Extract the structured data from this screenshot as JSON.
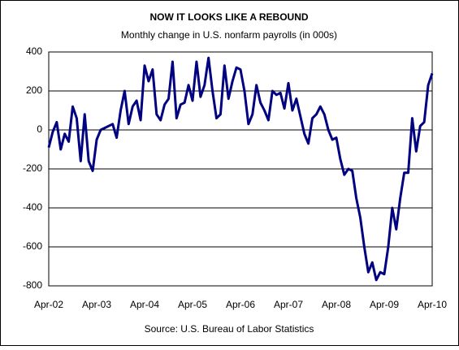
{
  "chart_data": {
    "type": "line",
    "title": "NOW IT LOOKS LIKE A REBOUND",
    "subtitle": "Monthly change in U.S. nonfarm payrolls (in 000s)",
    "source": "Source: U.S. Bureau of Labor Statistics",
    "categories": [
      "Apr-02",
      null,
      null,
      null,
      null,
      null,
      null,
      null,
      null,
      null,
      null,
      null,
      "Apr-03",
      null,
      null,
      null,
      null,
      null,
      null,
      null,
      null,
      null,
      null,
      null,
      "Apr-04",
      null,
      null,
      null,
      null,
      null,
      null,
      null,
      null,
      null,
      null,
      null,
      "Apr-05",
      null,
      null,
      null,
      null,
      null,
      null,
      null,
      null,
      null,
      null,
      null,
      "Apr-06",
      null,
      null,
      null,
      null,
      null,
      null,
      null,
      null,
      null,
      null,
      null,
      "Apr-07",
      null,
      null,
      null,
      null,
      null,
      null,
      null,
      null,
      null,
      null,
      null,
      "Apr-08",
      null,
      null,
      null,
      null,
      null,
      null,
      null,
      null,
      null,
      null,
      null,
      "Apr-09",
      null,
      null,
      null,
      null,
      null,
      null,
      null,
      null,
      null,
      null,
      null,
      "Apr-10"
    ],
    "series": [
      {
        "color": "#000080",
        "values": [
          -90,
          -10,
          40,
          -100,
          -20,
          -60,
          120,
          60,
          -160,
          80,
          -160,
          -210,
          -50,
          0,
          10,
          20,
          30,
          -40,
          100,
          200,
          30,
          120,
          150,
          50,
          330,
          250,
          310,
          80,
          50,
          130,
          160,
          350,
          60,
          130,
          140,
          230,
          150,
          350,
          170,
          230,
          370,
          200,
          60,
          80,
          330,
          160,
          250,
          320,
          310,
          200,
          30,
          80,
          230,
          140,
          100,
          50,
          200,
          180,
          190,
          110,
          240,
          100,
          160,
          70,
          -20,
          -70,
          60,
          80,
          120,
          80,
          0,
          -50,
          -40,
          -150,
          -230,
          -200,
          -210,
          -350,
          -450,
          -600,
          -730,
          -680,
          -770,
          -730,
          -740,
          -600,
          -400,
          -510,
          -350,
          -220,
          -220,
          60,
          -110,
          20,
          40,
          230,
          290
        ]
      }
    ],
    "ylim": [
      -800,
      400
    ],
    "yticks": [
      400,
      200,
      0,
      -200,
      -400,
      -600,
      -800
    ],
    "grid": true
  }
}
